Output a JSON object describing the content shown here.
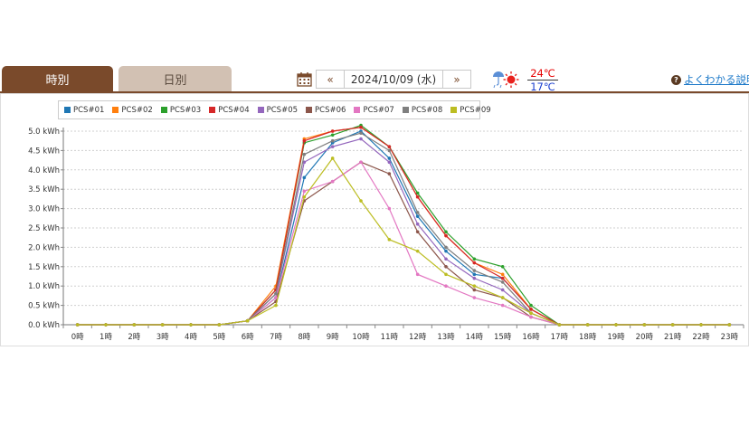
{
  "tabs": [
    {
      "label": "時別",
      "active": true
    },
    {
      "label": "日別",
      "active": false
    }
  ],
  "date_nav": {
    "prev": "«",
    "date": "2024/10/09 (水)",
    "next": "»"
  },
  "weather": {
    "icon": "rain-sun-icon",
    "high": "24℃",
    "low": "17℃"
  },
  "help": {
    "label": "よくわかる説明"
  },
  "colors": {
    "brown": "#7a4a2b",
    "tab_inactive": "#d2c1b3"
  },
  "chart_data": {
    "type": "line",
    "categories": [
      "0時",
      "1時",
      "2時",
      "3時",
      "4時",
      "5時",
      "6時",
      "7時",
      "8時",
      "9時",
      "10時",
      "11時",
      "12時",
      "13時",
      "14時",
      "15時",
      "16時",
      "17時",
      "18時",
      "19時",
      "20時",
      "21時",
      "22時",
      "23時"
    ],
    "yticks": [
      "0.0 kWh",
      "0.5 kWh",
      "1.0 kWh",
      "1.5 kWh",
      "2.0 kWh",
      "2.5 kWh",
      "3.0 kWh",
      "3.5 kWh",
      "4.0 kWh",
      "4.5 kWh",
      "5.0 kWh"
    ],
    "ylim": [
      0,
      5.0
    ],
    "grid": true,
    "legend_position": "top-left",
    "series": [
      {
        "name": "PCS#01",
        "color": "#1f77b4",
        "values": [
          0,
          0,
          0,
          0,
          0,
          0,
          0.1,
          0.7,
          3.8,
          4.7,
          5.0,
          4.3,
          2.8,
          1.9,
          1.3,
          1.2,
          0.4,
          0,
          0,
          0,
          0,
          0,
          0,
          0
        ]
      },
      {
        "name": "PCS#02",
        "color": "#ff7f0e",
        "values": [
          0,
          0,
          0,
          0,
          0,
          0,
          0.1,
          1.0,
          4.8,
          5.0,
          5.1,
          4.6,
          3.3,
          2.3,
          1.6,
          1.3,
          0.4,
          0,
          0,
          0,
          0,
          0,
          0,
          0
        ]
      },
      {
        "name": "PCS#03",
        "color": "#2ca02c",
        "values": [
          0,
          0,
          0,
          0,
          0,
          0,
          0.1,
          0.9,
          4.7,
          4.9,
          5.15,
          4.6,
          3.4,
          2.4,
          1.7,
          1.5,
          0.5,
          0,
          0,
          0,
          0,
          0,
          0,
          0
        ]
      },
      {
        "name": "PCS#04",
        "color": "#d62728",
        "values": [
          0,
          0,
          0,
          0,
          0,
          0,
          0.1,
          0.9,
          4.75,
          5.0,
          5.1,
          4.6,
          3.3,
          2.3,
          1.6,
          1.2,
          0.4,
          0,
          0,
          0,
          0,
          0,
          0,
          0
        ]
      },
      {
        "name": "PCS#05",
        "color": "#9467bd",
        "values": [
          0,
          0,
          0,
          0,
          0,
          0,
          0.1,
          0.8,
          4.2,
          4.6,
          4.8,
          4.2,
          2.6,
          1.7,
          1.2,
          0.9,
          0.3,
          0,
          0,
          0,
          0,
          0,
          0,
          0
        ]
      },
      {
        "name": "PCS#06",
        "color": "#8c564b",
        "values": [
          0,
          0,
          0,
          0,
          0,
          0,
          0.1,
          0.6,
          3.2,
          3.7,
          4.2,
          3.9,
          2.4,
          1.5,
          0.9,
          0.7,
          0.2,
          0,
          0,
          0,
          0,
          0,
          0,
          0
        ]
      },
      {
        "name": "PCS#07",
        "color": "#e377c2",
        "values": [
          0,
          0,
          0,
          0,
          0,
          0,
          0.1,
          0.7,
          3.45,
          3.7,
          4.2,
          3.0,
          1.3,
          1.0,
          0.7,
          0.5,
          0.2,
          0,
          0,
          0,
          0,
          0,
          0,
          0
        ]
      },
      {
        "name": "PCS#08",
        "color": "#7f7f7f",
        "values": [
          0,
          0,
          0,
          0,
          0,
          0,
          0.1,
          0.8,
          4.4,
          4.75,
          4.95,
          4.5,
          2.9,
          2.0,
          1.4,
          1.1,
          0.3,
          0,
          0,
          0,
          0,
          0,
          0,
          0
        ]
      },
      {
        "name": "PCS#09",
        "color": "#bcbd22",
        "values": [
          0,
          0,
          0,
          0,
          0,
          0,
          0.1,
          0.5,
          3.3,
          4.3,
          3.2,
          2.2,
          1.9,
          1.3,
          1.0,
          0.7,
          0.3,
          0,
          0,
          0,
          0,
          0,
          0,
          0
        ]
      }
    ]
  }
}
